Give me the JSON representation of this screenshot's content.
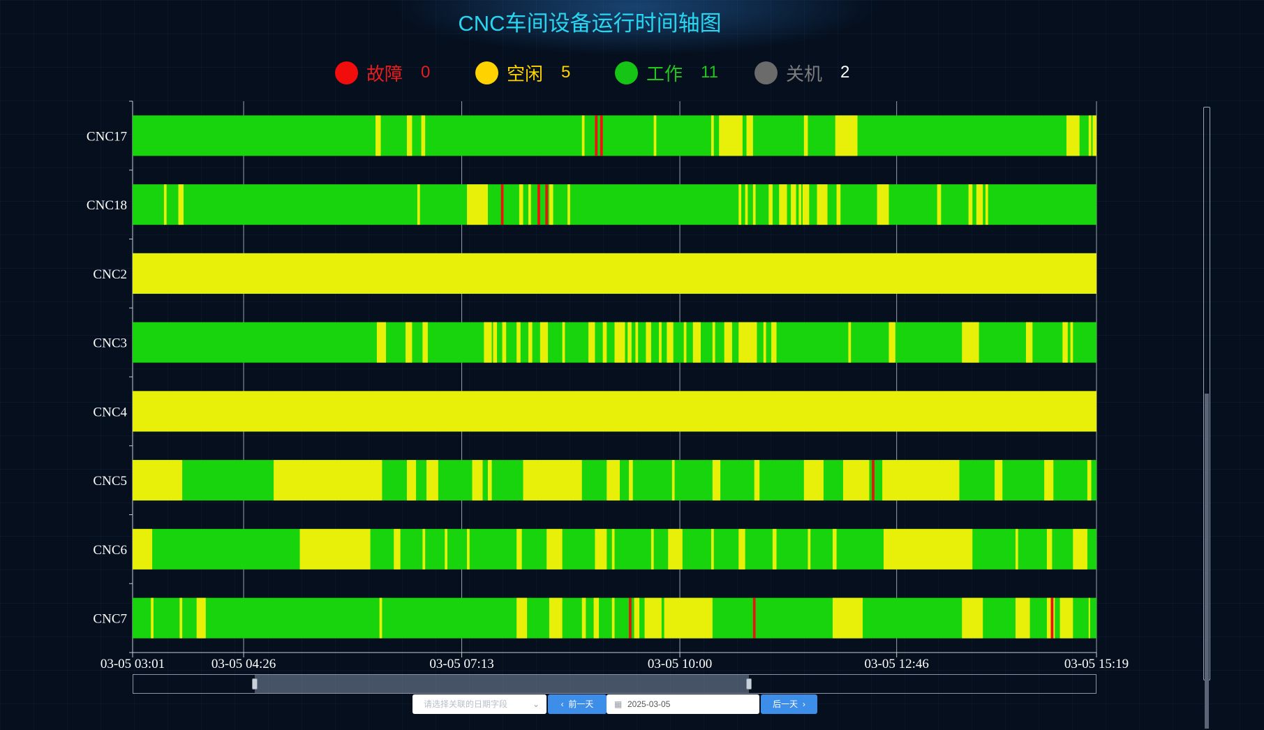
{
  "title": "CNC车间设备运行时间轴图",
  "legend": [
    {
      "label": "故障",
      "count": "0",
      "color": "#f20d0d",
      "text_color": "#e81d1d",
      "count_color": "#e81d1d"
    },
    {
      "label": "空闲",
      "count": "5",
      "color": "#ffd200",
      "text_color": "#ffd200",
      "count_color": "#ffd200"
    },
    {
      "label": "工作",
      "count": "11",
      "color": "#15c415",
      "text_color": "#1fc71f",
      "count_color": "#1fc71f"
    },
    {
      "label": "关机",
      "count": "2",
      "color": "#6b6b6b",
      "text_color": "#7d7d7d",
      "count_color": "#ffffff"
    }
  ],
  "chart_data": {
    "type": "timeline",
    "machines": [
      "CNC17",
      "CNC18",
      "CNC2",
      "CNC3",
      "CNC4",
      "CNC5",
      "CNC6",
      "CNC7"
    ],
    "x_ticks": [
      "03-05 03:01",
      "03-05 04:26",
      "03-05 07:13",
      "03-05 10:00",
      "03-05 12:46",
      "03-05 15:19"
    ],
    "x_range": [
      "2025-03-05 03:01",
      "2025-03-05 15:19"
    ],
    "status_colors": {
      "fault": "#ee1111",
      "idle": "#e8f00a",
      "working": "#18d40c",
      "off": "#6b6b6b"
    },
    "idle_intervals": {
      "CNC17": [
        [
          "06:07",
          "06:11"
        ],
        [
          "06:31",
          "06:35"
        ],
        [
          "06:42",
          "06:45"
        ],
        [
          "08:45",
          "08:47"
        ],
        [
          "09:40",
          "09:42"
        ],
        [
          "10:24",
          "10:26"
        ],
        [
          "10:30",
          "10:48"
        ],
        [
          "10:51",
          "10:56"
        ],
        [
          "11:35",
          "11:38"
        ],
        [
          "11:59",
          "12:16"
        ],
        [
          "14:56",
          "15:06"
        ],
        [
          "15:13",
          "15:15"
        ],
        [
          "15:16",
          "15:19"
        ]
      ],
      "CNC18": [
        [
          "03:25",
          "03:27"
        ],
        [
          "03:36",
          "03:40"
        ],
        [
          "06:39",
          "06:41"
        ],
        [
          "07:17",
          "07:33"
        ],
        [
          "07:57",
          "08:00"
        ],
        [
          "08:04",
          "08:06"
        ],
        [
          "08:20",
          "08:23"
        ],
        [
          "08:34",
          "08:36"
        ],
        [
          "10:45",
          "10:47"
        ],
        [
          "10:50",
          "10:52"
        ],
        [
          "10:56",
          "10:58"
        ],
        [
          "11:08",
          "11:11"
        ],
        [
          "11:16",
          "11:22"
        ],
        [
          "11:25",
          "11:29"
        ],
        [
          "11:31",
          "11:33"
        ],
        [
          "11:34",
          "11:39"
        ],
        [
          "11:45",
          "11:53"
        ],
        [
          "12:00",
          "12:03"
        ],
        [
          "12:31",
          "12:40"
        ],
        [
          "13:17",
          "13:20"
        ],
        [
          "13:41",
          "13:44"
        ],
        [
          "13:47",
          "13:52"
        ],
        [
          "13:54",
          "13:56"
        ]
      ],
      "CNC2": [
        [
          "03:01",
          "15:19"
        ]
      ],
      "CNC3": [
        [
          "06:08",
          "06:15"
        ],
        [
          "06:30",
          "06:35"
        ],
        [
          "06:43",
          "06:47"
        ],
        [
          "07:30",
          "07:36"
        ],
        [
          "07:37",
          "07:40"
        ],
        [
          "07:44",
          "07:47"
        ],
        [
          "07:55",
          "07:58"
        ],
        [
          "08:04",
          "08:07"
        ],
        [
          "08:13",
          "08:19"
        ],
        [
          "08:30",
          "08:32"
        ],
        [
          "08:50",
          "08:55"
        ],
        [
          "09:01",
          "09:04"
        ],
        [
          "09:10",
          "09:18"
        ],
        [
          "09:20",
          "09:23"
        ],
        [
          "09:26",
          "09:28"
        ],
        [
          "09:34",
          "09:38"
        ],
        [
          "09:44",
          "09:46"
        ],
        [
          "09:50",
          "09:55"
        ],
        [
          "10:03",
          "10:05"
        ],
        [
          "10:10",
          "10:16"
        ],
        [
          "10:25",
          "10:27"
        ],
        [
          "10:34",
          "10:40"
        ],
        [
          "10:45",
          "10:59"
        ],
        [
          "11:04",
          "11:06"
        ],
        [
          "11:10",
          "11:14"
        ],
        [
          "12:09",
          "12:11"
        ],
        [
          "12:40",
          "12:45"
        ],
        [
          "13:36",
          "13:49"
        ],
        [
          "14:25",
          "14:30"
        ],
        [
          "14:53",
          "14:57"
        ],
        [
          "14:59",
          "15:01"
        ]
      ],
      "CNC4": [
        [
          "03:01",
          "15:19"
        ]
      ],
      "CNC5": [
        [
          "03:01",
          "03:39"
        ],
        [
          "04:49",
          "06:12"
        ],
        [
          "06:31",
          "06:38"
        ],
        [
          "06:46",
          "06:55"
        ],
        [
          "07:21",
          "07:29"
        ],
        [
          "07:33",
          "07:36"
        ],
        [
          "08:00",
          "08:45"
        ],
        [
          "09:04",
          "09:14"
        ],
        [
          "09:21",
          "09:24"
        ],
        [
          "09:54",
          "09:56"
        ],
        [
          "10:25",
          "10:31"
        ],
        [
          "10:57",
          "11:01"
        ],
        [
          "11:35",
          "11:50"
        ],
        [
          "12:05",
          "12:25"
        ],
        [
          "12:35",
          "13:34"
        ],
        [
          "14:01",
          "14:07"
        ],
        [
          "14:39",
          "14:46"
        ],
        [
          "15:12",
          "15:15"
        ]
      ],
      "CNC6": [
        [
          "03:01",
          "03:16"
        ],
        [
          "05:09",
          "06:03"
        ],
        [
          "06:21",
          "06:26"
        ],
        [
          "06:43",
          "06:45"
        ],
        [
          "07:00",
          "07:02"
        ],
        [
          "07:17",
          "07:19"
        ],
        [
          "07:55",
          "07:59"
        ],
        [
          "08:18",
          "08:30"
        ],
        [
          "08:55",
          "09:04"
        ],
        [
          "09:08",
          "09:10"
        ],
        [
          "09:38",
          "09:40"
        ],
        [
          "09:51",
          "10:02"
        ],
        [
          "10:24",
          "10:26"
        ],
        [
          "10:45",
          "10:50"
        ],
        [
          "11:11",
          "11:14"
        ],
        [
          "11:38",
          "11:40"
        ],
        [
          "11:57",
          "12:00"
        ],
        [
          "12:36",
          "13:44"
        ],
        [
          "14:17",
          "14:19"
        ],
        [
          "14:41",
          "14:45"
        ],
        [
          "15:01",
          "15:12"
        ]
      ],
      "CNC7": [
        [
          "03:15",
          "03:17"
        ],
        [
          "03:37",
          "03:39"
        ],
        [
          "03:50",
          "03:57"
        ],
        [
          "06:10",
          "06:12"
        ],
        [
          "07:55",
          "08:03"
        ],
        [
          "08:20",
          "08:30"
        ],
        [
          "08:45",
          "08:48"
        ],
        [
          "08:54",
          "08:58"
        ],
        [
          "09:08",
          "09:10"
        ],
        [
          "09:25",
          "09:29"
        ],
        [
          "09:33",
          "09:46"
        ],
        [
          "09:48",
          "10:25"
        ],
        [
          "11:57",
          "12:20"
        ],
        [
          "13:36",
          "13:52"
        ],
        [
          "14:17",
          "14:28"
        ],
        [
          "14:41",
          "14:44"
        ],
        [
          "14:46",
          "14:47"
        ],
        [
          "14:51",
          "15:01"
        ],
        [
          "15:13",
          "15:14"
        ]
      ]
    },
    "fault_intervals": {
      "CNC17": [
        [
          "08:55",
          "08:57"
        ],
        [
          "08:59",
          "09:01"
        ]
      ],
      "CNC18": [
        [
          "07:43",
          "07:45"
        ],
        [
          "08:11",
          "08:13"
        ],
        [
          "08:17",
          "08:19"
        ]
      ],
      "CNC5": [
        [
          "12:27",
          "12:29"
        ]
      ],
      "CNC7": [
        [
          "09:21",
          "09:23"
        ],
        [
          "10:56",
          "10:58"
        ],
        [
          "14:44",
          "14:46"
        ]
      ]
    },
    "base_status": "working",
    "grid": true
  },
  "datazoom": {
    "start_percent": 12.6,
    "end_percent": 64
  },
  "controls": {
    "select_placeholder": "请选择关联的日期字段",
    "prev_day_label": "前一天",
    "date_value": "2025-03-05",
    "next_day_label": "后一天"
  }
}
